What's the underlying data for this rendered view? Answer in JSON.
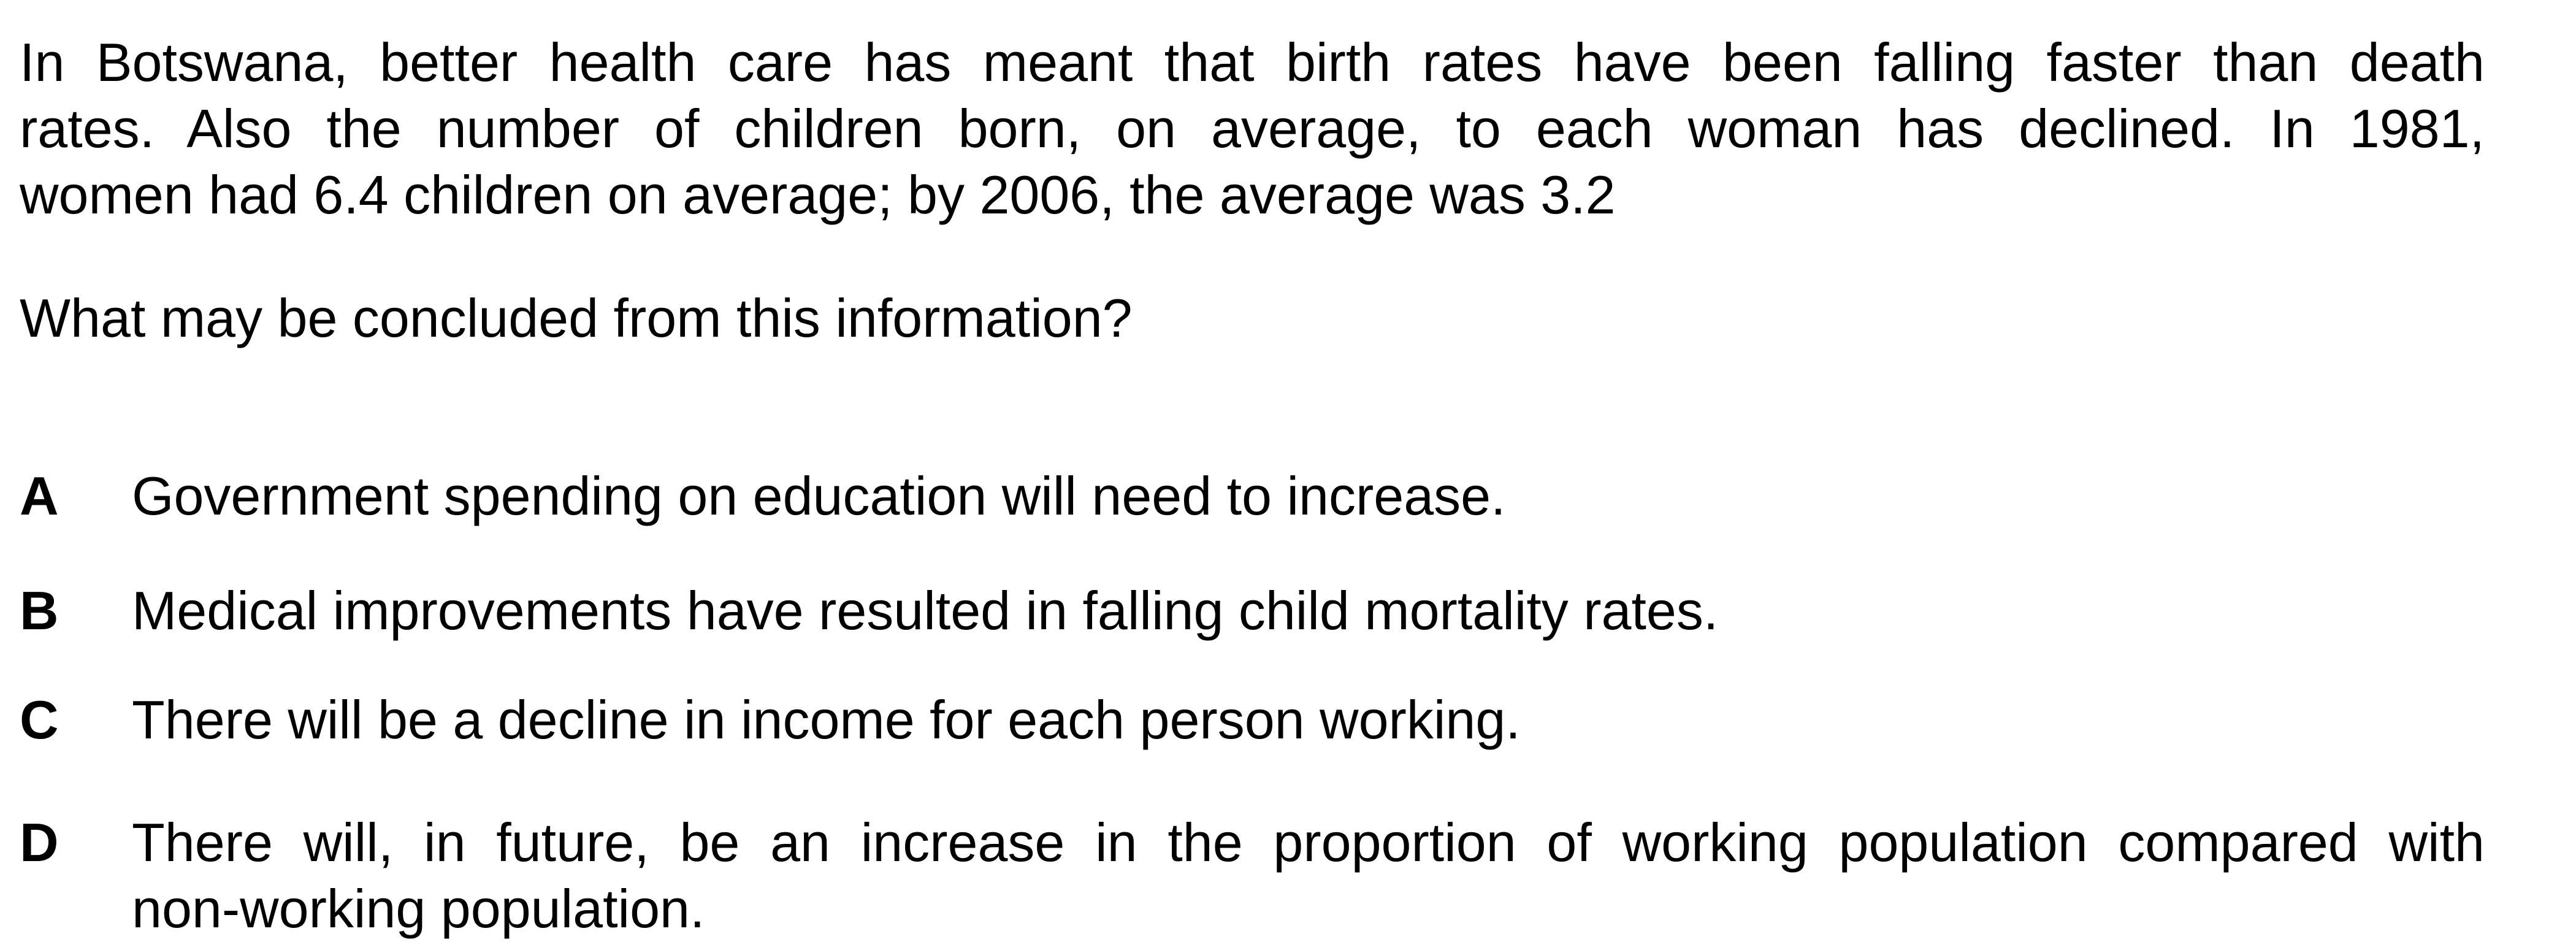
{
  "stem": {
    "line1": "In Botswana, better health care has meant that birth rates have been falling faster than death",
    "line2": "rates. Also the number of children born, on average, to each woman has declined. In 1981,",
    "line3": "women had 6.4 children on average; by 2006, the average was 3.2"
  },
  "question": "What may be concluded from this information?",
  "options": [
    {
      "letter": "A",
      "text": "Government spending on education will need to increase."
    },
    {
      "letter": "B",
      "text": "Medical improvements have resulted in falling child mortality rates."
    },
    {
      "letter": "C",
      "text": "There will be a decline in income for each person working."
    },
    {
      "letter": "D",
      "text_line1": "There will, in future, be an increase in the proportion of working population compared with",
      "text_line2": "non-working population."
    }
  ]
}
